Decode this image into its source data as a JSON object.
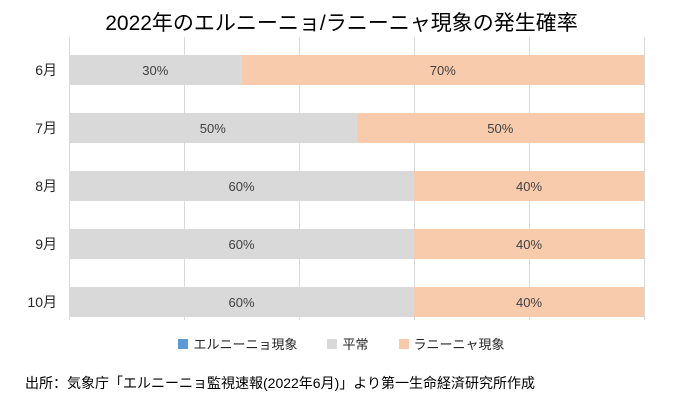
{
  "title": "2022年のエルニーニョ/ラニーニャ現象の発生確率",
  "source": "出所：気象庁「エルニーニョ監視速報(2022年6月)」より第一生命経済研究所作成",
  "colors": {
    "elnino": "#5B9BD5",
    "normal": "#D9D9D9",
    "lanina": "#F8CBAD",
    "gridline": "#D9D9D9",
    "value_text": "#404040",
    "background": "#FFFFFF"
  },
  "chart_data": {
    "type": "bar",
    "orientation": "horizontal",
    "stacked": true,
    "title": "2022年のエルニーニョ/ラニーニャ現象の発生確率",
    "categories": [
      "6月",
      "7月",
      "8月",
      "9月",
      "10月"
    ],
    "series": [
      {
        "key": "elnino",
        "name": "エルニーニョ現象",
        "color": "#5B9BD5",
        "values": [
          0,
          0,
          0,
          0,
          0
        ]
      },
      {
        "key": "normal",
        "name": "平常",
        "color": "#D9D9D9",
        "values": [
          30,
          50,
          60,
          60,
          60
        ]
      },
      {
        "key": "lanina",
        "name": "ラニーニャ現象",
        "color": "#F8CBAD",
        "values": [
          70,
          50,
          40,
          40,
          40
        ]
      }
    ],
    "value_label_suffix": "%",
    "xlim": [
      0,
      100
    ],
    "gridlines_percent": [
      0,
      20,
      40,
      60,
      80,
      100
    ],
    "grid": true,
    "legend_position": "bottom"
  }
}
